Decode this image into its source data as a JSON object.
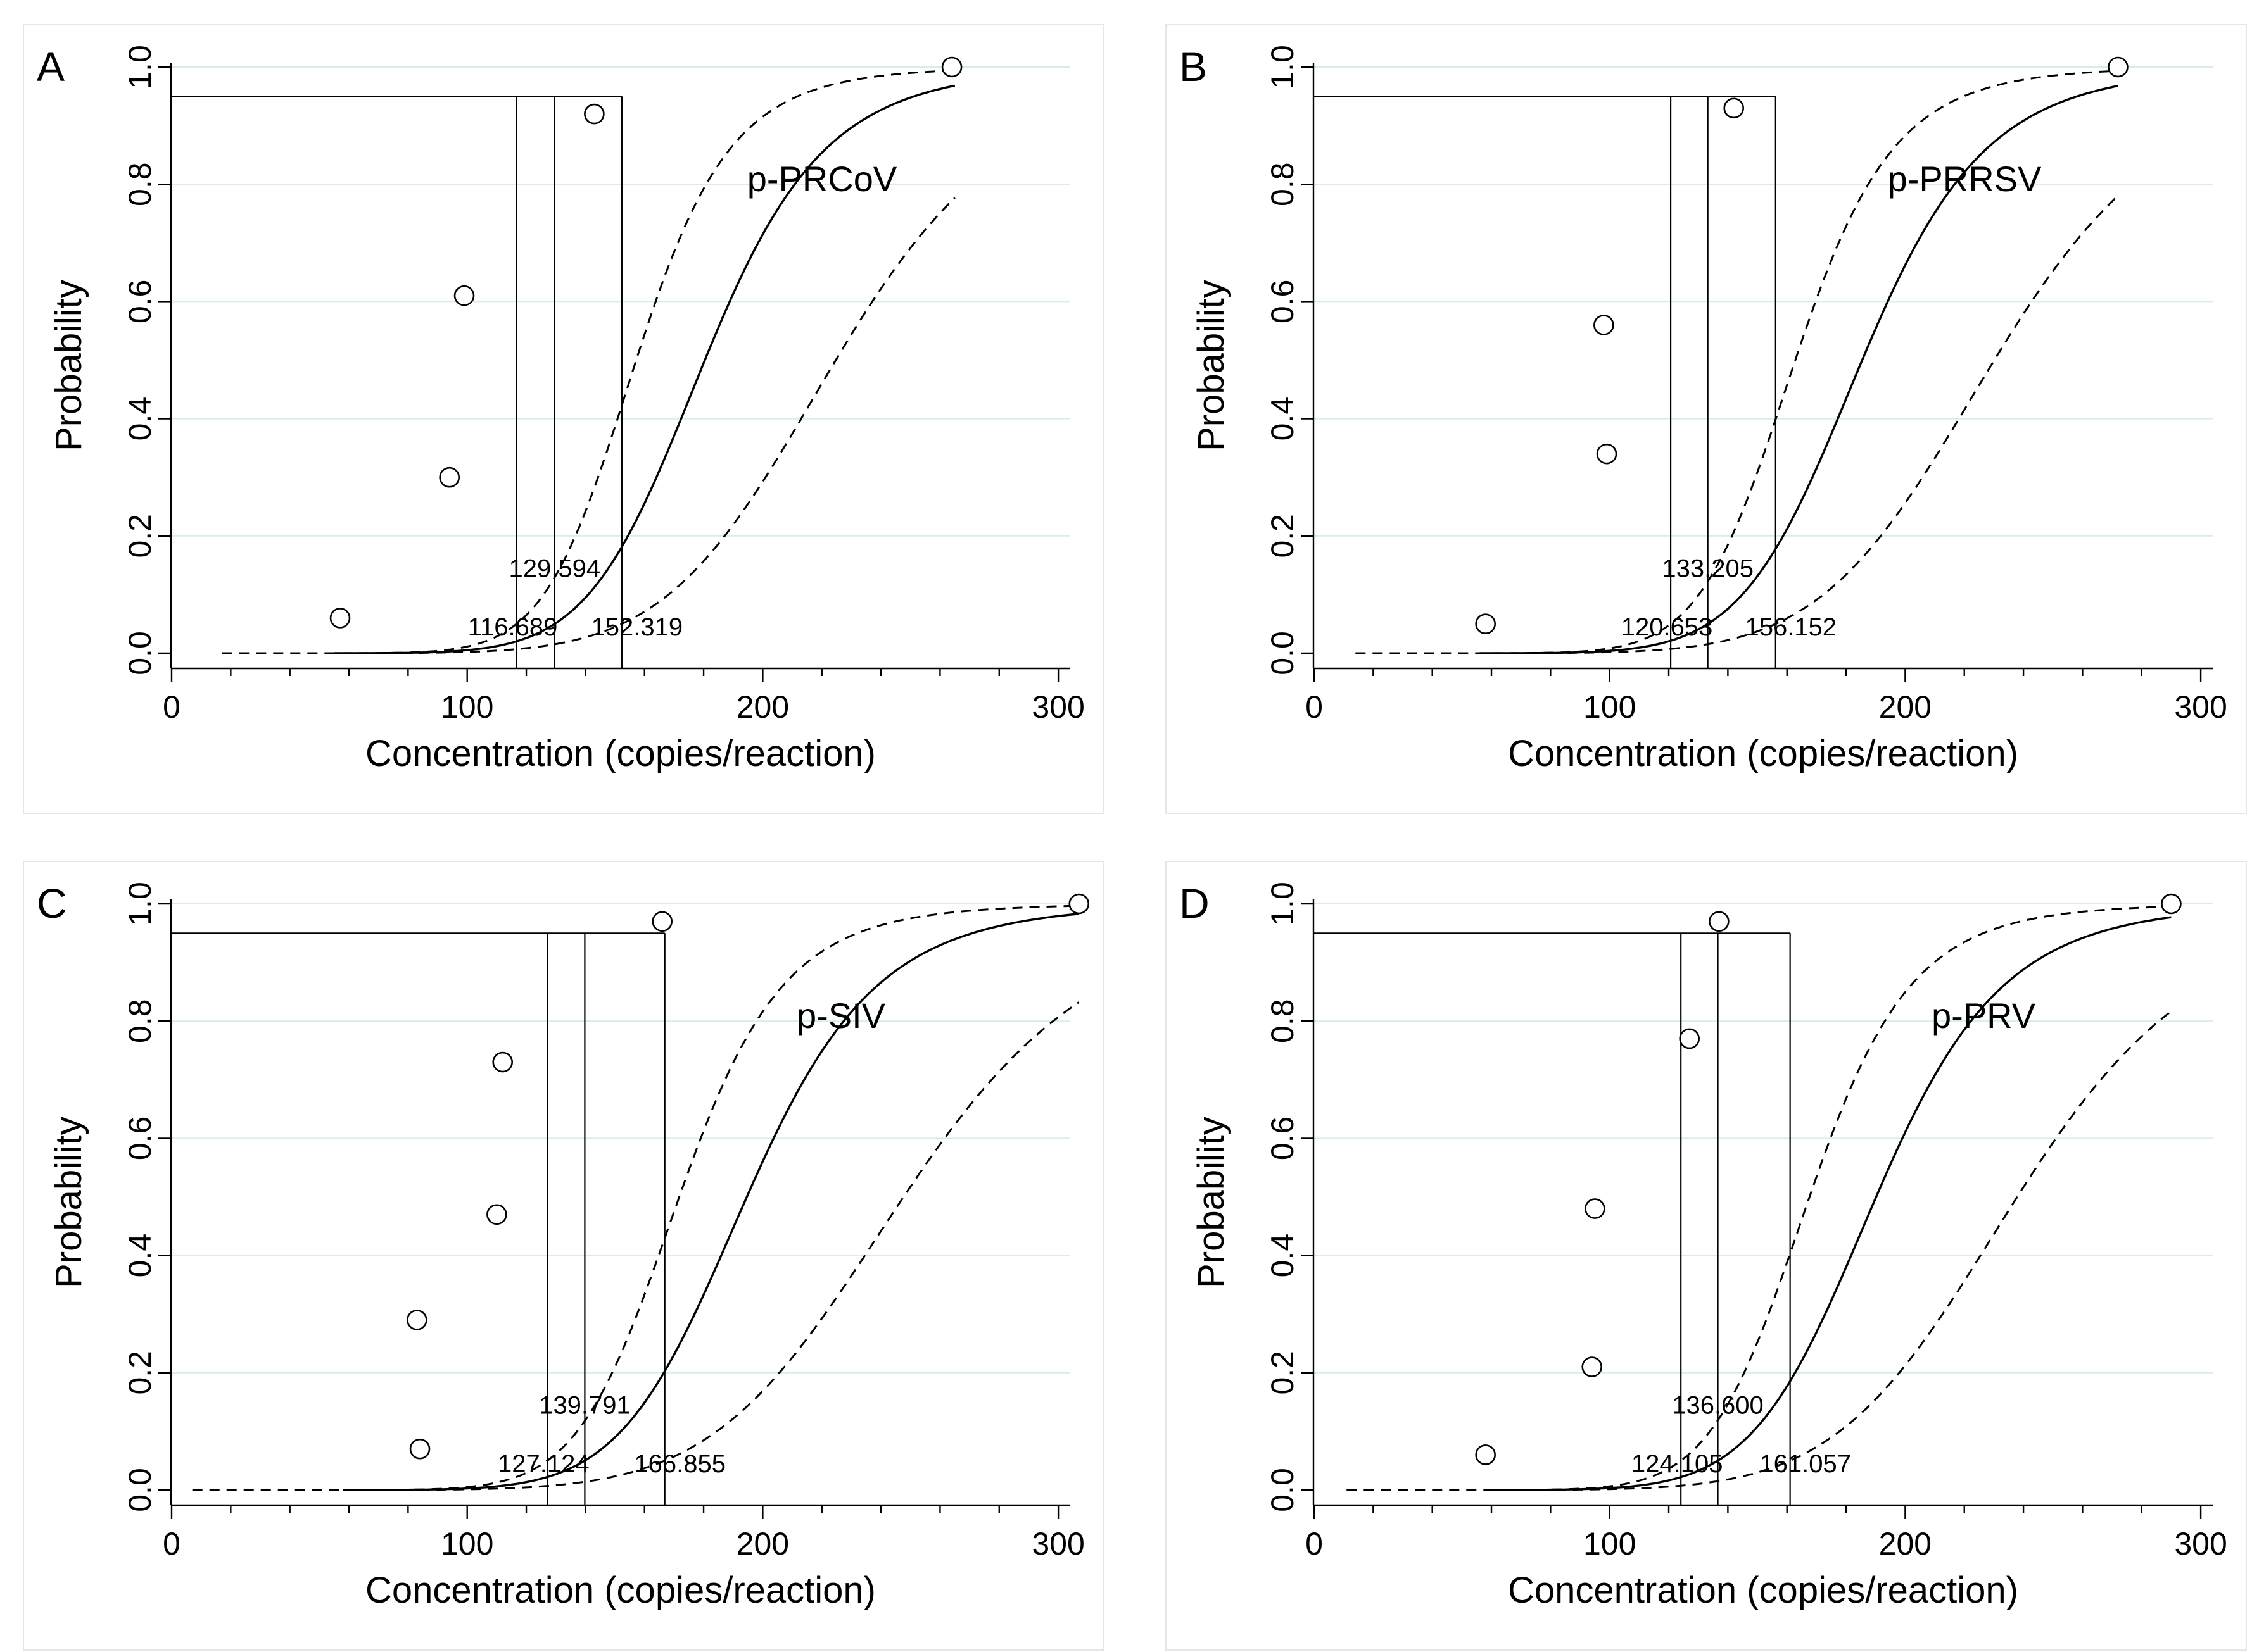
{
  "chart_data": [
    {
      "type": "line",
      "panel_label": "A",
      "title": "p-PRCoV",
      "xlabel": "Concentration (copies/reaction)",
      "ylabel": "Probability",
      "xlim": [
        0,
        300
      ],
      "ylim": [
        0,
        1
      ],
      "xticks": [
        "0",
        "100",
        "200",
        "300"
      ],
      "yticks": [
        "0.0",
        "0.2",
        "0.4",
        "0.6",
        "0.8",
        "1.0"
      ],
      "grid": "horizontal",
      "probability_level": 0.95,
      "lod": {
        "estimate": 129.594,
        "lower": 116.689,
        "upper": 152.319
      },
      "lod_labels": {
        "estimate": "129.594",
        "lower": "116.689",
        "upper": "152.319"
      },
      "fit_range": [
        55,
        265
      ],
      "lower_ci_range": [
        17,
        265
      ],
      "upper_ci_range": [
        72,
        265
      ],
      "points": [
        {
          "x": 57,
          "y": 0.06
        },
        {
          "x": 94,
          "y": 0.3
        },
        {
          "x": 99,
          "y": 0.61
        },
        {
          "x": 143,
          "y": 0.92
        },
        {
          "x": 264,
          "y": 1.0
        }
      ]
    },
    {
      "type": "line",
      "panel_label": "B",
      "title": "p-PRRSV",
      "xlabel": "Concentration (copies/reaction)",
      "ylabel": "Probability",
      "xlim": [
        0,
        300
      ],
      "ylim": [
        0,
        1
      ],
      "xticks": [
        "0",
        "100",
        "200",
        "300"
      ],
      "yticks": [
        "0.0",
        "0.2",
        "0.4",
        "0.6",
        "0.8",
        "1.0"
      ],
      "grid": "horizontal",
      "probability_level": 0.95,
      "lod": {
        "estimate": 133.205,
        "lower": 120.653,
        "upper": 156.152
      },
      "lod_labels": {
        "estimate": "133.205",
        "lower": "120.653",
        "upper": "156.152"
      },
      "fit_range": [
        56,
        272
      ],
      "lower_ci_range": [
        14,
        272
      ],
      "upper_ci_range": [
        74,
        272
      ],
      "points": [
        {
          "x": 58,
          "y": 0.05
        },
        {
          "x": 98,
          "y": 0.56
        },
        {
          "x": 99,
          "y": 0.34
        },
        {
          "x": 142,
          "y": 0.93
        },
        {
          "x": 272,
          "y": 1.0
        }
      ]
    },
    {
      "type": "line",
      "panel_label": "C",
      "title": "p-SIV",
      "xlabel": "Concentration (copies/reaction)",
      "ylabel": "Probability",
      "xlim": [
        0,
        300
      ],
      "ylim": [
        0,
        1
      ],
      "xticks": [
        "0",
        "100",
        "200",
        "300"
      ],
      "yticks": [
        "0.0",
        "0.2",
        "0.4",
        "0.6",
        "0.8",
        "1.0"
      ],
      "grid": "horizontal",
      "probability_level": 0.95,
      "lod": {
        "estimate": 139.791,
        "lower": 127.124,
        "upper": 166.855
      },
      "lod_labels": {
        "estimate": "139.791",
        "lower": "127.124",
        "upper": "166.855"
      },
      "fit_range": [
        58,
        307
      ],
      "lower_ci_range": [
        7,
        307
      ],
      "upper_ci_range": [
        78,
        307
      ],
      "points": [
        {
          "x": 83,
          "y": 0.29
        },
        {
          "x": 84,
          "y": 0.07
        },
        {
          "x": 110,
          "y": 0.47
        },
        {
          "x": 112,
          "y": 0.73
        },
        {
          "x": 166,
          "y": 0.97
        },
        {
          "x": 307,
          "y": 1.0
        }
      ]
    },
    {
      "type": "line",
      "panel_label": "D",
      "title": "p-PRV",
      "xlabel": "Concentration (copies/reaction)",
      "ylabel": "Probability",
      "xlim": [
        0,
        300
      ],
      "ylim": [
        0,
        1
      ],
      "xticks": [
        "0",
        "100",
        "200",
        "300"
      ],
      "yticks": [
        "0.0",
        "0.2",
        "0.4",
        "0.6",
        "0.8",
        "1.0"
      ],
      "grid": "horizontal",
      "probability_level": 0.95,
      "lod": {
        "estimate": 136.6,
        "lower": 124.105,
        "upper": 161.057
      },
      "lod_labels": {
        "estimate": "136.600",
        "lower": "124.105",
        "upper": "161.057"
      },
      "fit_range": [
        58,
        290
      ],
      "lower_ci_range": [
        11,
        290
      ],
      "upper_ci_range": [
        76,
        290
      ],
      "points": [
        {
          "x": 58,
          "y": 0.06
        },
        {
          "x": 94,
          "y": 0.21
        },
        {
          "x": 95,
          "y": 0.48
        },
        {
          "x": 127,
          "y": 0.77
        },
        {
          "x": 137,
          "y": 0.97
        },
        {
          "x": 290,
          "y": 1.0
        }
      ]
    }
  ]
}
